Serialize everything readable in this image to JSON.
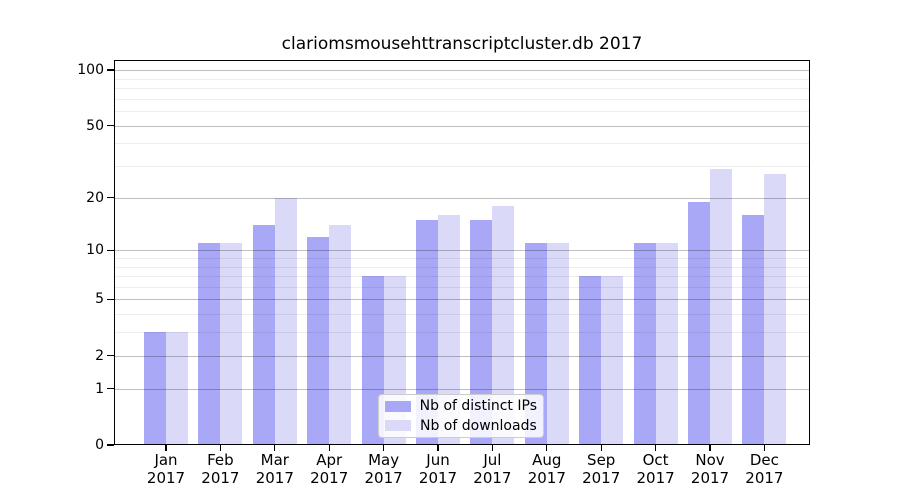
{
  "figure": {
    "title": "clariomsmousehttranscriptcluster.db 2017",
    "background": "#ffffff"
  },
  "legend": {
    "items": [
      {
        "label": "Nb of distinct IPs",
        "series": "distinct_ips"
      },
      {
        "label": "Nb of downloads",
        "series": "downloads"
      }
    ]
  },
  "colors": {
    "distinct_ips_bar": "#a8a8f6",
    "downloads_bar": "#dadaf8",
    "axis": "#000000",
    "text": "#000000",
    "major_gridline": "rgba(0,0,0,0.25)",
    "minor_gridline": "rgba(0,0,0,0.07)",
    "legend_background": "rgba(255,255,255,0.85)",
    "legend_border": "#cccccc"
  },
  "y_axis": {
    "scale": "log1p",
    "major_ticks": [
      0,
      1,
      2,
      5,
      10,
      20,
      50,
      100
    ],
    "minor_gridlines": [
      3,
      4,
      6,
      7,
      8,
      9,
      30,
      40,
      60,
      70,
      80,
      90
    ]
  },
  "x_axis": {
    "labels": [
      {
        "month": "Jan",
        "year": "2017"
      },
      {
        "month": "Feb",
        "year": "2017"
      },
      {
        "month": "Mar",
        "year": "2017"
      },
      {
        "month": "Apr",
        "year": "2017"
      },
      {
        "month": "May",
        "year": "2017"
      },
      {
        "month": "Jun",
        "year": "2017"
      },
      {
        "month": "Jul",
        "year": "2017"
      },
      {
        "month": "Aug",
        "year": "2017"
      },
      {
        "month": "Sep",
        "year": "2017"
      },
      {
        "month": "Oct",
        "year": "2017"
      },
      {
        "month": "Nov",
        "year": "2017"
      },
      {
        "month": "Dec",
        "year": "2017"
      }
    ]
  },
  "chart_data": {
    "type": "bar",
    "title": "clariomsmousehttranscriptcluster.db 2017",
    "categories": [
      "Jan 2017",
      "Feb 2017",
      "Mar 2017",
      "Apr 2017",
      "May 2017",
      "Jun 2017",
      "Jul 2017",
      "Aug 2017",
      "Sep 2017",
      "Oct 2017",
      "Nov 2017",
      "Dec 2017"
    ],
    "series": [
      {
        "name": "Nb of distinct IPs",
        "values": [
          3,
          11,
          14,
          12,
          7,
          15,
          15,
          11,
          7,
          11,
          19,
          16
        ]
      },
      {
        "name": "Nb of downloads",
        "values": [
          3,
          11,
          20,
          14,
          7,
          16,
          18,
          11,
          7,
          11,
          29,
          27
        ]
      }
    ],
    "xlabel": "",
    "ylabel": "",
    "yticks": [
      0,
      1,
      2,
      5,
      10,
      20,
      50,
      100
    ],
    "yscale": "log1p",
    "ylim": [
      0,
      113
    ],
    "grid": true,
    "legend_position": "inside-bottom-center"
  }
}
